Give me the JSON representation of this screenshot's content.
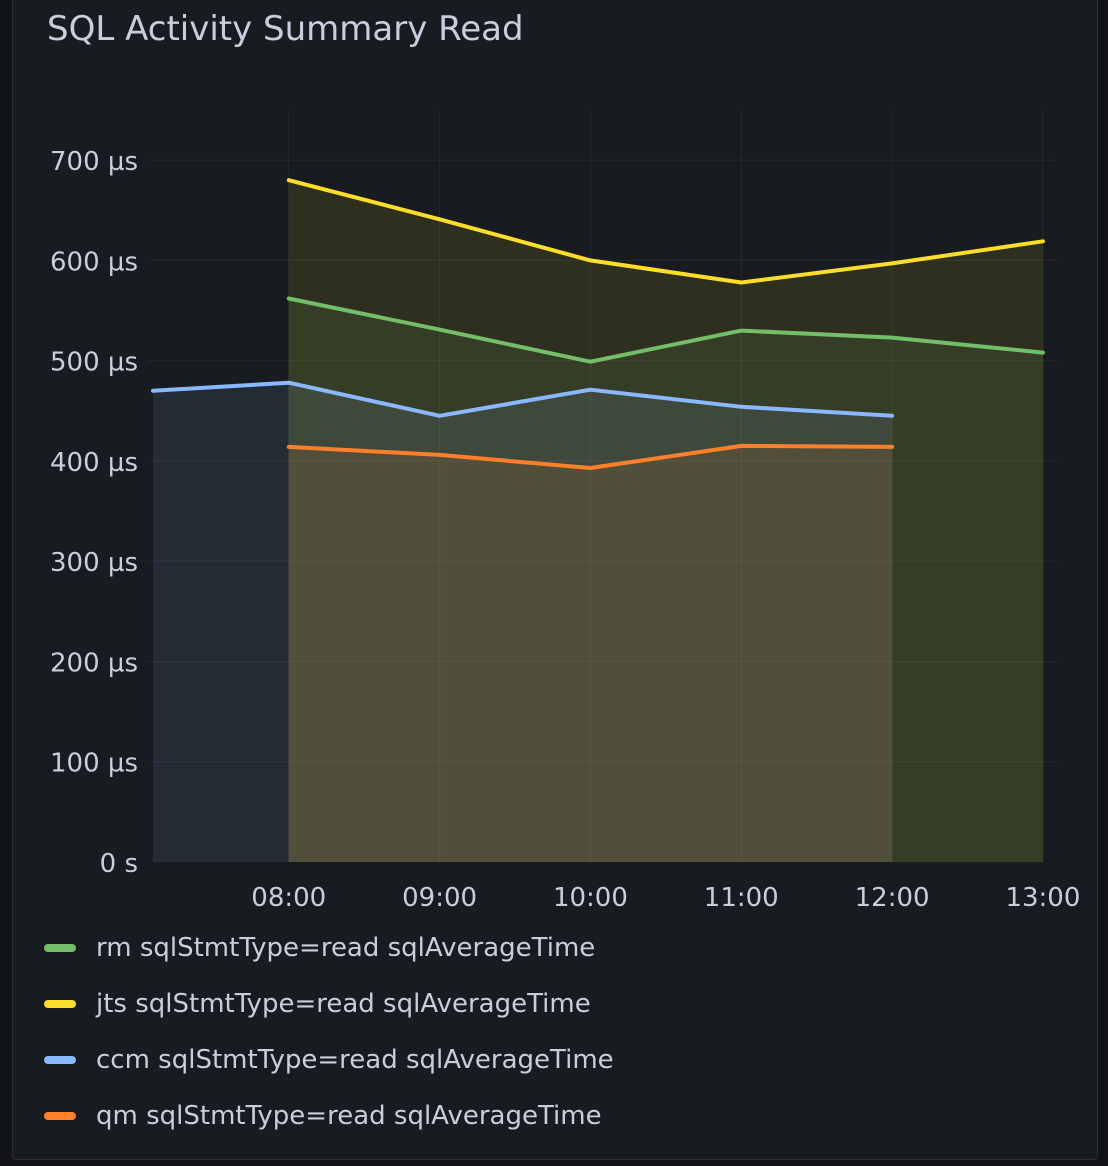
{
  "panel": {
    "title": "SQL Activity Summary Read"
  },
  "chart_data": {
    "type": "area",
    "title": "SQL Activity Summary Read",
    "x": [
      "07:06",
      "08:00",
      "09:00",
      "10:00",
      "11:00",
      "12:00",
      "13:00"
    ],
    "xticks": [
      "08:00",
      "09:00",
      "10:00",
      "11:00",
      "12:00",
      "13:00"
    ],
    "xlim": [
      "07:04",
      "13:06"
    ],
    "yticks": [
      "0 s",
      "100 µs",
      "200 µs",
      "300 µs",
      "400 µs",
      "500 µs",
      "600 µs",
      "700 µs"
    ],
    "ylim": [
      0,
      750
    ],
    "unit": "µs",
    "grid": true,
    "legend_position": "bottom",
    "series": [
      {
        "name": "rm sqlStmtType=read sqlAverageTime",
        "color": "#73bf69",
        "values": [
          null,
          562,
          531,
          499,
          530,
          523,
          508
        ]
      },
      {
        "name": "jts sqlStmtType=read sqlAverageTime",
        "color": "#fade2a",
        "values": [
          null,
          680,
          641,
          600,
          578,
          597,
          619
        ]
      },
      {
        "name": "ccm sqlStmtType=read sqlAverageTime",
        "color": "#8ab8ff",
        "values": [
          470,
          478,
          445,
          471,
          454,
          445,
          null
        ]
      },
      {
        "name": "qm sqlStmtType=read sqlAverageTime",
        "color": "#ff7f2a",
        "values": [
          null,
          414,
          406,
          393,
          415,
          414,
          null
        ]
      }
    ]
  }
}
